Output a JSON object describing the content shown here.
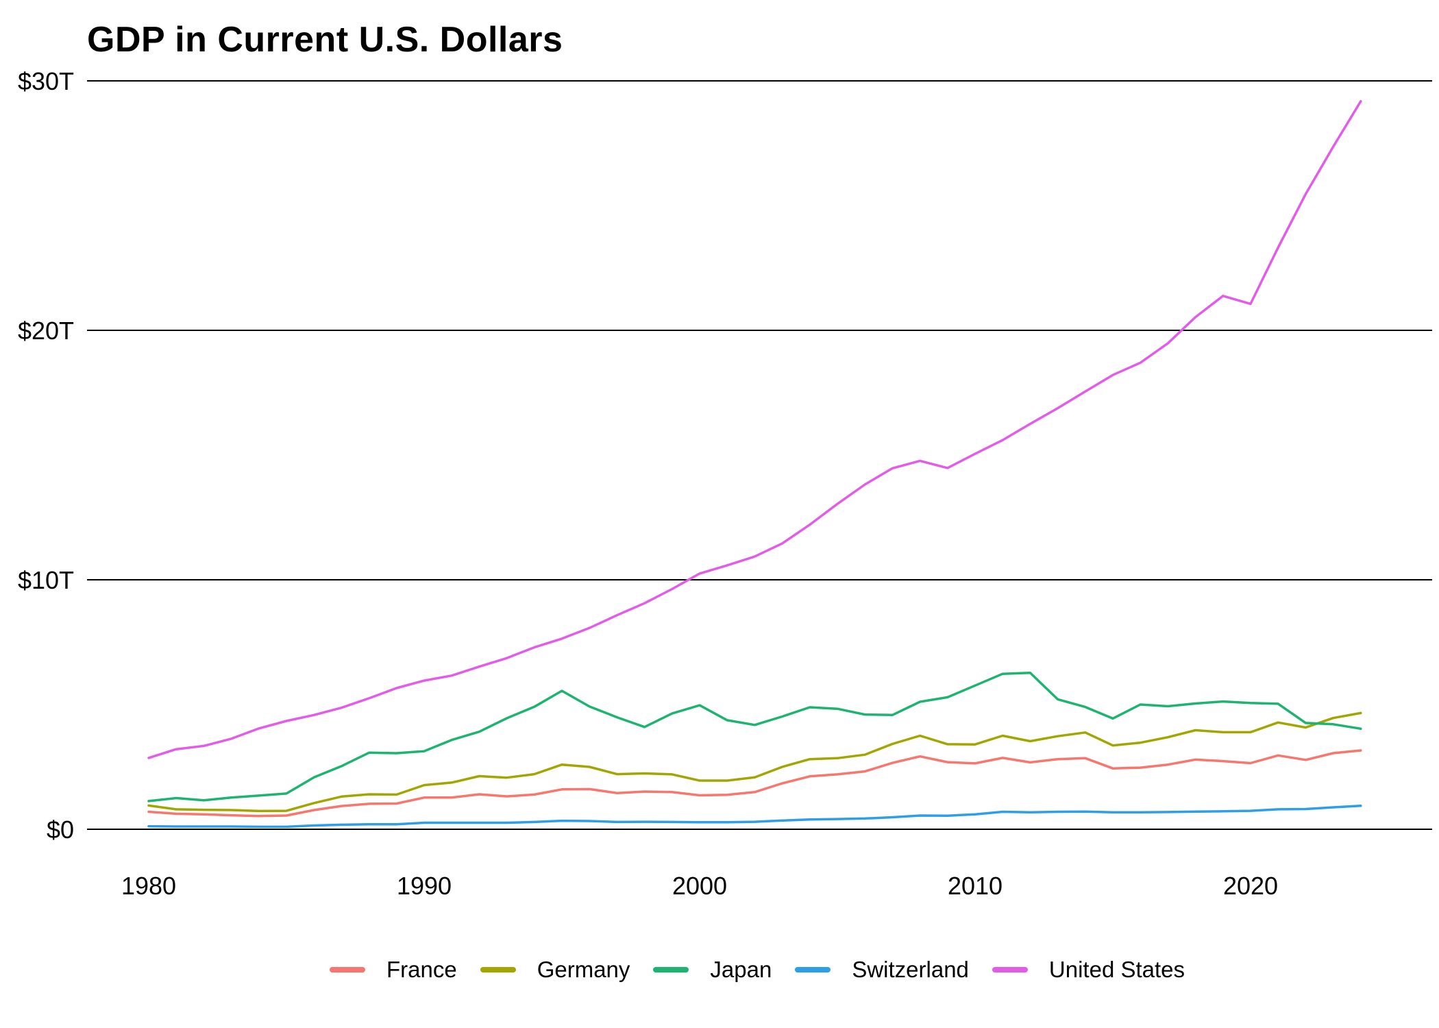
{
  "title": "GDP in Current U.S. Dollars",
  "chart_data": {
    "type": "line",
    "title": "GDP in Current U.S. Dollars",
    "xlabel": "",
    "ylabel": "",
    "xlim": [
      1980,
      2024
    ],
    "ylim": [
      0,
      30
    ],
    "grid": "horizontal",
    "legend_position": "bottom",
    "x_ticks": [
      {
        "value": 1980,
        "label": "1980"
      },
      {
        "value": 1990,
        "label": "1990"
      },
      {
        "value": 2000,
        "label": "2000"
      },
      {
        "value": 2010,
        "label": "2010"
      },
      {
        "value": 2020,
        "label": "2020"
      }
    ],
    "y_ticks": [
      {
        "value": 0,
        "label": "$0"
      },
      {
        "value": 10,
        "label": "$10T"
      },
      {
        "value": 20,
        "label": "$20T"
      },
      {
        "value": 30,
        "label": "$30T"
      }
    ],
    "x": [
      1980,
      1981,
      1982,
      1983,
      1984,
      1985,
      1986,
      1987,
      1988,
      1989,
      1990,
      1991,
      1992,
      1993,
      1994,
      1995,
      1996,
      1997,
      1998,
      1999,
      2000,
      2001,
      2002,
      2003,
      2004,
      2005,
      2006,
      2007,
      2008,
      2009,
      2010,
      2011,
      2012,
      2013,
      2014,
      2015,
      2016,
      2017,
      2018,
      2019,
      2020,
      2021,
      2022,
      2023,
      2024
    ],
    "unit": "trillions USD",
    "series": [
      {
        "name": "France",
        "color": "#F8766D",
        "values": [
          0.7,
          0.62,
          0.6,
          0.56,
          0.53,
          0.55,
          0.77,
          0.93,
          1.02,
          1.03,
          1.27,
          1.27,
          1.4,
          1.32,
          1.39,
          1.6,
          1.61,
          1.45,
          1.51,
          1.49,
          1.36,
          1.38,
          1.49,
          1.84,
          2.12,
          2.2,
          2.32,
          2.66,
          2.92,
          2.69,
          2.64,
          2.86,
          2.68,
          2.81,
          2.85,
          2.44,
          2.47,
          2.59,
          2.79,
          2.73,
          2.65,
          2.96,
          2.78,
          3.05,
          3.16
        ]
      },
      {
        "name": "Germany",
        "color": "#A3A500",
        "values": [
          0.95,
          0.8,
          0.78,
          0.77,
          0.73,
          0.74,
          1.05,
          1.31,
          1.4,
          1.39,
          1.77,
          1.87,
          2.13,
          2.07,
          2.21,
          2.59,
          2.5,
          2.21,
          2.24,
          2.2,
          1.95,
          1.95,
          2.08,
          2.5,
          2.81,
          2.85,
          2.99,
          3.42,
          3.75,
          3.41,
          3.4,
          3.75,
          3.53,
          3.73,
          3.88,
          3.36,
          3.47,
          3.69,
          3.97,
          3.89,
          3.89,
          4.28,
          4.08,
          4.46,
          4.66
        ]
      },
      {
        "name": "Japan",
        "color": "#1CB46F",
        "values": [
          1.13,
          1.25,
          1.16,
          1.27,
          1.35,
          1.43,
          2.08,
          2.53,
          3.07,
          3.05,
          3.13,
          3.58,
          3.91,
          4.45,
          4.91,
          5.55,
          4.92,
          4.49,
          4.1,
          4.64,
          4.97,
          4.37,
          4.18,
          4.52,
          4.89,
          4.83,
          4.6,
          4.58,
          5.11,
          5.29,
          5.76,
          6.23,
          6.27,
          5.21,
          4.9,
          4.44,
          5.0,
          4.93,
          5.04,
          5.12,
          5.06,
          5.03,
          4.26,
          4.21,
          4.03
        ]
      },
      {
        "name": "Switzerland",
        "color": "#2D9FE8",
        "values": [
          0.12,
          0.11,
          0.11,
          0.11,
          0.1,
          0.1,
          0.15,
          0.18,
          0.2,
          0.2,
          0.26,
          0.26,
          0.26,
          0.26,
          0.29,
          0.34,
          0.33,
          0.29,
          0.3,
          0.29,
          0.28,
          0.28,
          0.3,
          0.35,
          0.39,
          0.41,
          0.43,
          0.48,
          0.55,
          0.54,
          0.6,
          0.7,
          0.68,
          0.7,
          0.71,
          0.68,
          0.68,
          0.69,
          0.71,
          0.72,
          0.74,
          0.8,
          0.81,
          0.88,
          0.94
        ]
      },
      {
        "name": "United States",
        "color": "#E25CE8",
        "values": [
          2.86,
          3.21,
          3.34,
          3.63,
          4.04,
          4.34,
          4.58,
          4.87,
          5.25,
          5.66,
          5.96,
          6.16,
          6.52,
          6.86,
          7.29,
          7.64,
          8.07,
          8.58,
          9.06,
          9.63,
          10.25,
          10.58,
          10.93,
          11.46,
          12.21,
          13.04,
          13.82,
          14.47,
          14.77,
          14.48,
          15.05,
          15.6,
          16.25,
          16.88,
          17.55,
          18.21,
          18.7,
          19.48,
          20.53,
          21.38,
          21.06,
          23.32,
          25.46,
          27.36,
          29.18
        ]
      }
    ]
  },
  "legend": {
    "items": [
      {
        "label": "France"
      },
      {
        "label": "Germany"
      },
      {
        "label": "Japan"
      },
      {
        "label": "Switzerland"
      },
      {
        "label": "United States"
      }
    ]
  }
}
